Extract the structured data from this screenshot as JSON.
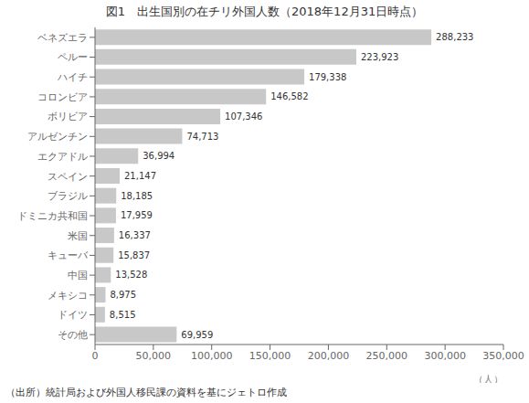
{
  "chart_data": {
    "type": "bar",
    "orientation": "horizontal",
    "title": "図1　出生国別の在チリ外国人数（2018年12月31日時点）",
    "xlabel": "（人）",
    "annotations": [
      "（出所）統計局および外国人移民課の資料を基にジェトロ作成"
    ],
    "categories": [
      "ベネズエラ",
      "ペルー",
      "ハイチ",
      "コロンビア",
      "ボリビア",
      "アルゼンチン",
      "エクアドル",
      "スペイン",
      "ブラジル",
      "ドミニカ共和国",
      "米国",
      "キューバ",
      "中国",
      "メキシコ",
      "ドイツ",
      "その他"
    ],
    "values": [
      288233,
      223923,
      179338,
      146582,
      107346,
      74713,
      36994,
      21147,
      18185,
      17959,
      16337,
      15837,
      13528,
      8975,
      8515,
      69959
    ],
    "value_labels": [
      "288,233",
      "223,923",
      "179,338",
      "146,582",
      "107,346",
      "74,713",
      "36,994",
      "21,147",
      "18,185",
      "17,959",
      "16,337",
      "15,837",
      "13,528",
      "8,975",
      "8,515",
      "69,959"
    ],
    "data_labels": true,
    "color": "#c8c8c8",
    "xlim": [
      0,
      350000
    ],
    "xticks": [
      0,
      {
        "value": 50000,
        "label": "50,000"
      },
      {
        "value": 100000,
        "label": "100,000"
      },
      {
        "value": 150000,
        "label": "150,000"
      },
      {
        "value": 200000,
        "label": "200,000"
      },
      {
        "value": 250000,
        "label": "250,000"
      },
      {
        "value": 300000,
        "label": "300,000"
      },
      {
        "value": 350000,
        "label": "350,000"
      }
    ],
    "grid": false
  }
}
